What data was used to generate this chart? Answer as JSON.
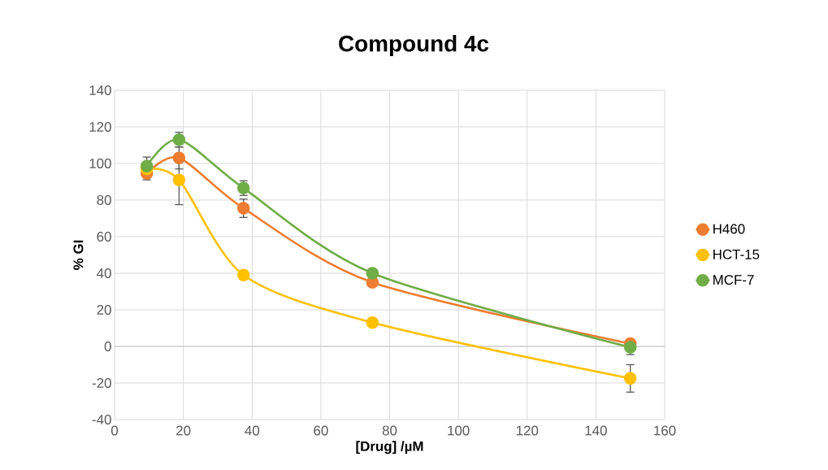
{
  "chart_data": {
    "type": "line",
    "title": "Compound 4c",
    "xlabel": "[Drug] /µM",
    "ylabel": "% GI",
    "x": [
      9.375,
      18.75,
      37.5,
      75,
      150
    ],
    "series": [
      {
        "name": "H460",
        "color": "#ed7d31",
        "values": [
          94.5,
          103,
          75.5,
          35,
          1.5
        ],
        "errors": [
          3.5,
          6,
          5,
          null,
          null
        ]
      },
      {
        "name": "HCT-15",
        "color": "#ffc000",
        "values": [
          97,
          91,
          39,
          13,
          -17.5
        ],
        "errors": [
          null,
          13.5,
          null,
          null,
          7.5
        ]
      },
      {
        "name": "MCF-7",
        "color": "#70ad47",
        "values": [
          98.5,
          113,
          86.5,
          40,
          -0.5
        ],
        "errors": [
          5,
          4,
          4,
          null,
          4
        ]
      }
    ],
    "xlim": [
      0,
      160
    ],
    "xticks": [
      0,
      20,
      40,
      60,
      80,
      100,
      120,
      140,
      160
    ],
    "ylim": [
      -40,
      140
    ],
    "yticks": [
      -40,
      -20,
      0,
      20,
      40,
      60,
      80,
      100,
      120,
      140
    ],
    "grid": true,
    "legend": "right",
    "marker": "circle",
    "line_style": "solid"
  }
}
